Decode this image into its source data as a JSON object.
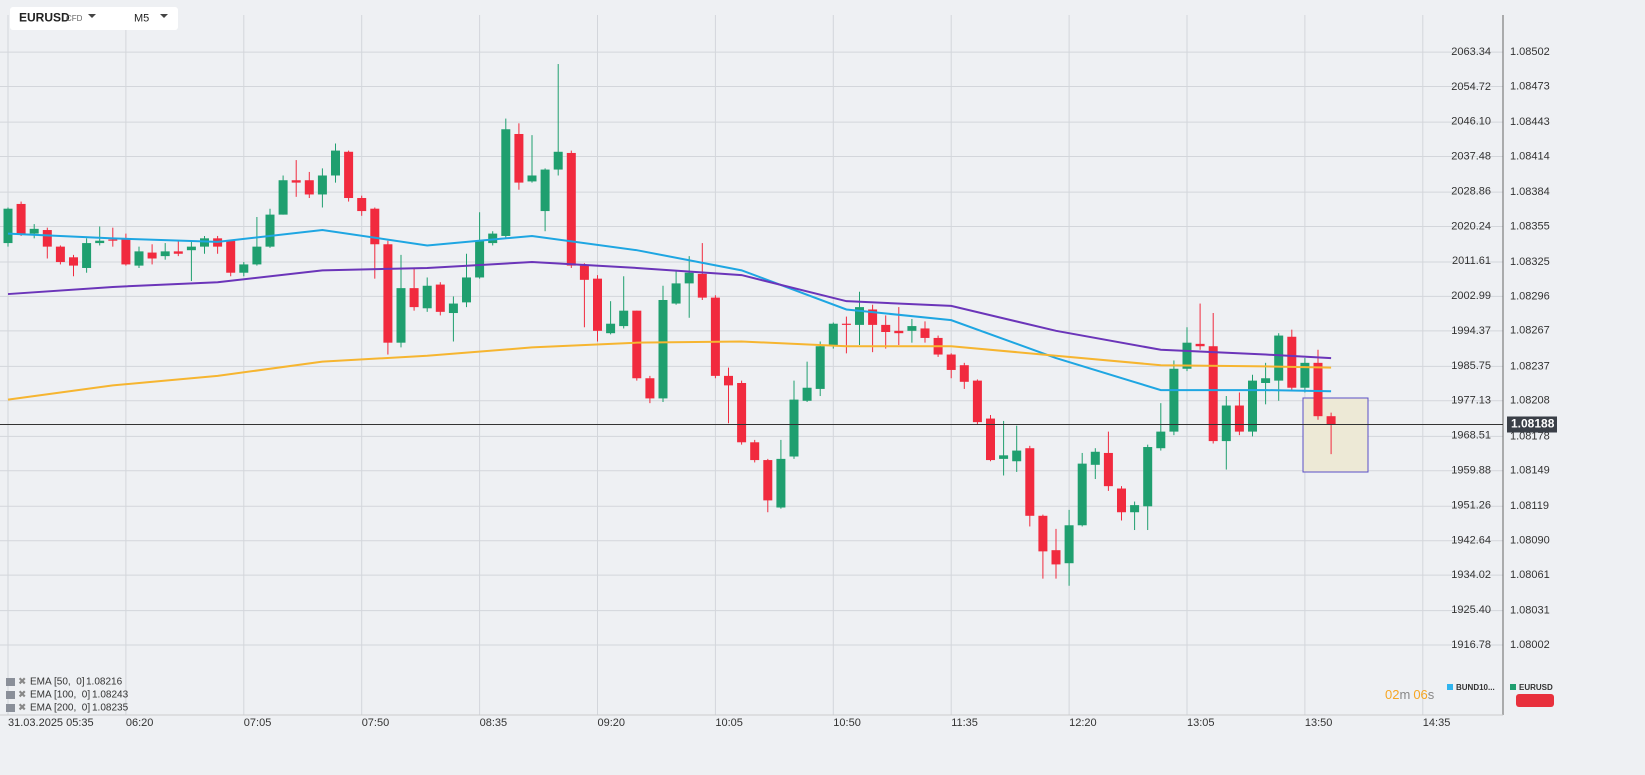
{
  "chart_data": {
    "type": "candlestick",
    "symbol": "EURUSD",
    "symbol_type": "CFD",
    "timeframe": "M5",
    "up_color": "#1f9f6f",
    "down_color": "#f12a3e",
    "open": [
      1.08341,
      1.08374,
      1.08349,
      1.08352,
      1.08338,
      1.08329,
      1.0832,
      1.08341,
      1.08344,
      1.08345,
      1.08322,
      1.08333,
      1.0833,
      1.08334,
      1.08335,
      1.08338,
      1.08345,
      1.08343,
      1.08316,
      1.08323,
      1.08338,
      1.08365,
      1.08394,
      1.08394,
      1.08382,
      1.08398,
      1.08418,
      1.08379,
      1.0837,
      1.0834,
      1.08257,
      1.08303,
      1.08286,
      1.08306,
      1.08282,
      1.08291,
      1.08312,
      1.08341,
      1.08347,
      1.08433,
      1.08393,
      1.08368,
      1.08403,
      1.08417,
      1.08322,
      1.08311,
      1.08265,
      1.08271,
      1.08284,
      1.08227,
      1.0821,
      1.0829,
      1.08307,
      1.08315,
      1.08295,
      1.08229,
      1.08223,
      1.08173,
      1.08158,
      1.08118,
      1.08161,
      1.08208,
      1.08218,
      1.08255,
      1.08273,
      1.08272,
      1.08285,
      1.08272,
      1.08267,
      1.08267,
      1.08269,
      1.08261,
      1.08247,
      1.08238,
      1.08225,
      1.08193,
      1.08159,
      1.08157,
      1.08168,
      1.08111,
      1.08082,
      1.08071,
      1.08103,
      1.08154,
      1.08164,
      1.08134,
      1.08114,
      1.08119,
      1.08168,
      1.08182,
      1.08235,
      1.08256,
      1.08254,
      1.08174,
      1.08204,
      1.08182,
      1.08223,
      1.08225,
      1.08262,
      1.08219,
      1.0824,
      1.08195
    ],
    "high": [
      1.08371,
      1.08376,
      1.08357,
      1.08354,
      1.08339,
      1.08331,
      1.08345,
      1.08355,
      1.08354,
      1.08349,
      1.08338,
      1.0834,
      1.08341,
      1.08343,
      1.08343,
      1.08347,
      1.08347,
      1.08344,
      1.08325,
      1.08363,
      1.0837,
      1.08398,
      1.08411,
      1.08401,
      1.08404,
      1.08425,
      1.08419,
      1.08381,
      1.08371,
      1.08343,
      1.08331,
      1.0832,
      1.08312,
      1.08308,
      1.08296,
      1.08332,
      1.08367,
      1.08351,
      1.08446,
      1.08442,
      1.08432,
      1.08404,
      1.08492,
      1.08419,
      1.08324,
      1.08314,
      1.08292,
      1.08313,
      1.08284,
      1.08229,
      1.08305,
      1.08317,
      1.0833,
      1.08341,
      1.08297,
      1.08236,
      1.08225,
      1.08175,
      1.08159,
      1.08175,
      1.08225,
      1.08241,
      1.08258,
      1.08274,
      1.08279,
      1.083,
      1.08289,
      1.0828,
      1.08287,
      1.08277,
      1.08275,
      1.08263,
      1.08248,
      1.0824,
      1.08226,
      1.08196,
      1.08191,
      1.08187,
      1.0817,
      1.08112,
      1.081,
      1.08116,
      1.08164,
      1.08168,
      1.08182,
      1.08136,
      1.08123,
      1.08171,
      1.08206,
      1.08242,
      1.0827,
      1.0829,
      1.08282,
      1.08212,
      1.08215,
      1.0823,
      1.0824,
      1.08265,
      1.08268,
      1.08244,
      1.08251,
      1.08198
    ],
    "low": [
      1.08338,
      1.08347,
      1.08345,
      1.08328,
      1.08323,
      1.08313,
      1.08316,
      1.08339,
      1.08338,
      1.08322,
      1.0832,
      1.08323,
      1.08327,
      1.0833,
      1.08309,
      1.08332,
      1.08332,
      1.08313,
      1.08313,
      1.08322,
      1.08337,
      1.08365,
      1.0838,
      1.08379,
      1.08371,
      1.08392,
      1.08376,
      1.08364,
      1.08311,
      1.08247,
      1.08253,
      1.08284,
      1.08283,
      1.0828,
      1.08258,
      1.08287,
      1.08311,
      1.08339,
      1.08345,
      1.08386,
      1.08392,
      1.08351,
      1.08398,
      1.0832,
      1.0827,
      1.08258,
      1.08264,
      1.08269,
      1.08225,
      1.08206,
      1.08207,
      1.08289,
      1.08278,
      1.08293,
      1.08227,
      1.08189,
      1.08171,
      1.08156,
      1.08114,
      1.08117,
      1.08159,
      1.08207,
      1.08212,
      1.08252,
      1.08248,
      1.08255,
      1.08249,
      1.08252,
      1.08255,
      1.08257,
      1.08257,
      1.08245,
      1.08227,
      1.08218,
      1.08188,
      1.08157,
      1.08145,
      1.08148,
      1.08102,
      1.08058,
      1.08058,
      1.08052,
      1.08102,
      1.08142,
      1.08132,
      1.08107,
      1.08099,
      1.08099,
      1.08166,
      1.08179,
      1.08233,
      1.08251,
      1.08172,
      1.0815,
      1.08179,
      1.08178,
      1.08205,
      1.08208,
      1.08217,
      1.08215,
      1.08192,
      1.08163
    ],
    "close": [
      1.0837,
      1.08349,
      1.08353,
      1.08338,
      1.08325,
      1.08322,
      1.08341,
      1.08343,
      1.08343,
      1.08323,
      1.08334,
      1.08328,
      1.08334,
      1.08332,
      1.08338,
      1.08345,
      1.08338,
      1.08316,
      1.08323,
      1.08338,
      1.08365,
      1.08394,
      1.08392,
      1.08382,
      1.08398,
      1.08419,
      1.08379,
      1.08368,
      1.0834,
      1.08257,
      1.08303,
      1.08287,
      1.08305,
      1.08283,
      1.0829,
      1.08312,
      1.08343,
      1.08349,
      1.08437,
      1.08392,
      1.08398,
      1.08403,
      1.08418,
      1.08322,
      1.0831,
      1.08267,
      1.08273,
      1.08284,
      1.08227,
      1.0821,
      1.08293,
      1.08307,
      1.08316,
      1.08295,
      1.08229,
      1.08221,
      1.08173,
      1.08158,
      1.08124,
      1.08159,
      1.08209,
      1.08219,
      1.08254,
      1.08273,
      1.08272,
      1.08287,
      1.08272,
      1.08266,
      1.08265,
      1.08271,
      1.08261,
      1.08247,
      1.08234,
      1.08224,
      1.0819,
      1.08158,
      1.08162,
      1.08166,
      1.08111,
      1.08081,
      1.0807,
      1.08103,
      1.08155,
      1.08165,
      1.08136,
      1.08114,
      1.0812,
      1.08169,
      1.08182,
      1.08235,
      1.08257,
      1.08254,
      1.08174,
      1.08204,
      1.08182,
      1.08225,
      1.08227,
      1.08263,
      1.08219,
      1.0824,
      1.08195,
      1.08188
    ],
    "ema_x": [
      0,
      8,
      16,
      24,
      32,
      40,
      48,
      56,
      64,
      72,
      80,
      88,
      96,
      101
    ],
    "indicators": [
      {
        "name": "EMA",
        "params": "[50,  0]",
        "value": 1.08216,
        "color": "#1ea6e2",
        "values": [
          1.08349,
          1.08345,
          1.08342,
          1.08352,
          1.08339,
          1.08347,
          1.08335,
          1.08318,
          1.08285,
          1.08276,
          1.08244,
          1.08217,
          1.08217,
          1.08216
        ]
      },
      {
        "name": "EMA",
        "params": "[100,  0]",
        "value": 1.08243,
        "color": "#6b35b9",
        "values": [
          1.08298,
          1.08304,
          1.08308,
          1.08318,
          1.0832,
          1.08325,
          1.0832,
          1.08314,
          1.08292,
          1.08288,
          1.08267,
          1.08251,
          1.08247,
          1.08244
        ]
      },
      {
        "name": "EMA",
        "params": "[200,  0]",
        "value": 1.08235,
        "color": "#f6b530",
        "values": [
          1.08209,
          1.08221,
          1.08229,
          1.08241,
          1.08246,
          1.08253,
          1.08257,
          1.08258,
          1.08254,
          1.08254,
          1.08246,
          1.08238,
          1.08237,
          1.08236
        ]
      }
    ],
    "last_price": 1.08188,
    "ylim": [
      1.07943,
      1.08546
    ],
    "yticks": [
      1.08502,
      1.08473,
      1.08443,
      1.08414,
      1.08384,
      1.08355,
      1.08325,
      1.08296,
      1.08267,
      1.08237,
      1.08208,
      1.08178,
      1.08149,
      1.08119,
      {
        "value": 1.0809,
        "label": "1.08090"
      },
      1.08061,
      1.08031,
      1.08002
    ],
    "y2lim": [
      1899.48,
      2076.19
    ],
    "y2ticks": [
      2063.34,
      2054.72,
      {
        "value": 2046.1,
        "label": "2046.10"
      },
      2037.48,
      2028.86,
      2020.24,
      2011.61,
      2002.99,
      1994.37,
      1985.75,
      1977.13,
      1968.51,
      1959.88,
      1951.26,
      1942.64,
      1934.02,
      {
        "value": 1925.4,
        "label": "1925.40"
      },
      1916.78
    ],
    "xticks": [
      "31.03.2025  05:35",
      "06:20",
      "07:05",
      "07:50",
      "08:35",
      "09:20",
      "10:05",
      "10:50",
      "11:35",
      "12:20",
      "13:05",
      "13:50",
      "14:35"
    ],
    "countdown": [
      "02",
      "m",
      "06",
      "s"
    ],
    "legend": [
      {
        "name": "BUND10...",
        "color": "#2fb4ee"
      },
      {
        "name": "EURUSD",
        "color": "#1f9f6f"
      }
    ]
  }
}
